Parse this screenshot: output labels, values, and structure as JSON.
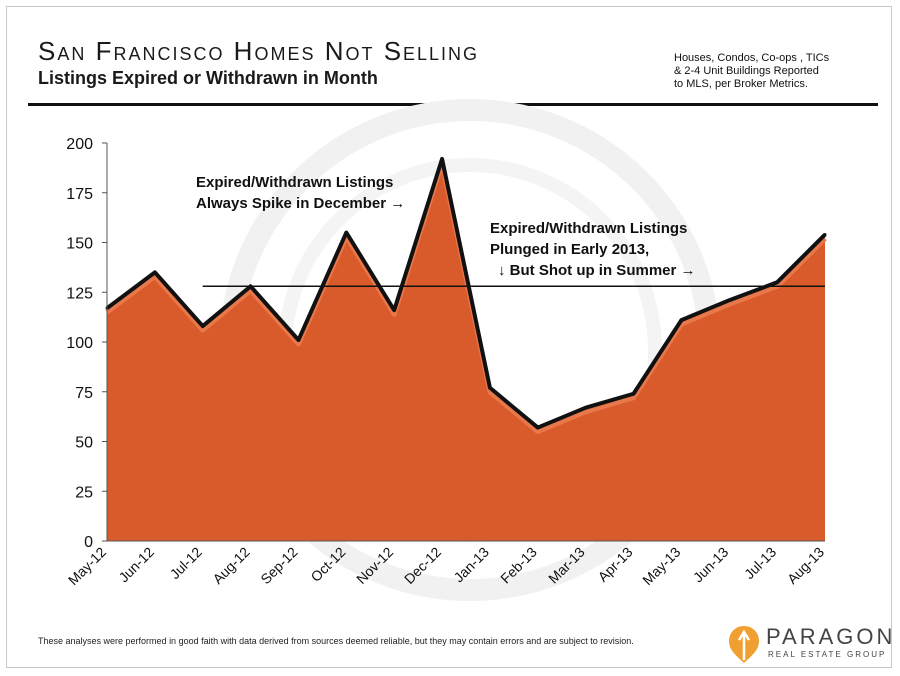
{
  "header": {
    "title": "San Francisco Homes Not Selling",
    "subtitle": "Listings Expired or Withdrawn in Month",
    "note_lines": [
      "Houses, Condos, Co-ops , TICs",
      "& 2-4 Unit Buildings Reported",
      "to MLS, per Broker Metrics."
    ]
  },
  "footer": {
    "disclaimer": "These analyses were performed in good faith with data derived from sources deemed reliable, but they may contain errors and are subject to revision.",
    "logo_name": "PARAGON",
    "logo_tagline": "REAL ESTATE GROUP"
  },
  "colors": {
    "area_fill": "#d95a2b",
    "area_fill_light": "#e8774a",
    "outline": "#111111",
    "reference_line": "#111111"
  },
  "chart_data": {
    "type": "area",
    "categories": [
      "May-12",
      "Jun-12",
      "Jul-12",
      "Aug-12",
      "Sep-12",
      "Oct-12",
      "Nov-12",
      "Dec-12",
      "Jan-13",
      "Feb-13",
      "Mar-13",
      "Apr-13",
      "May-13",
      "Jun-13",
      "Jul-13",
      "Aug-13"
    ],
    "series": [
      {
        "values": [
          117,
          135,
          108,
          128,
          101,
          155,
          116,
          192,
          77,
          57,
          67,
          74,
          111,
          121,
          130,
          154
        ]
      }
    ],
    "reference_line": {
      "value": 128,
      "from_category": "Jul-12",
      "to_category": "Aug-13"
    },
    "ylim": [
      0,
      200
    ],
    "yticks": [
      0,
      25,
      50,
      75,
      100,
      125,
      150,
      175,
      200
    ],
    "annotations": [
      {
        "lines": [
          "Expired/Withdrawn Listings",
          "Always Spike in December →"
        ]
      },
      {
        "lines": [
          "Expired/Withdrawn Listings",
          "Plunged in Early 2013,",
          "↓  But Shot up in Summer →"
        ]
      }
    ],
    "grid": false,
    "legend": "none"
  }
}
